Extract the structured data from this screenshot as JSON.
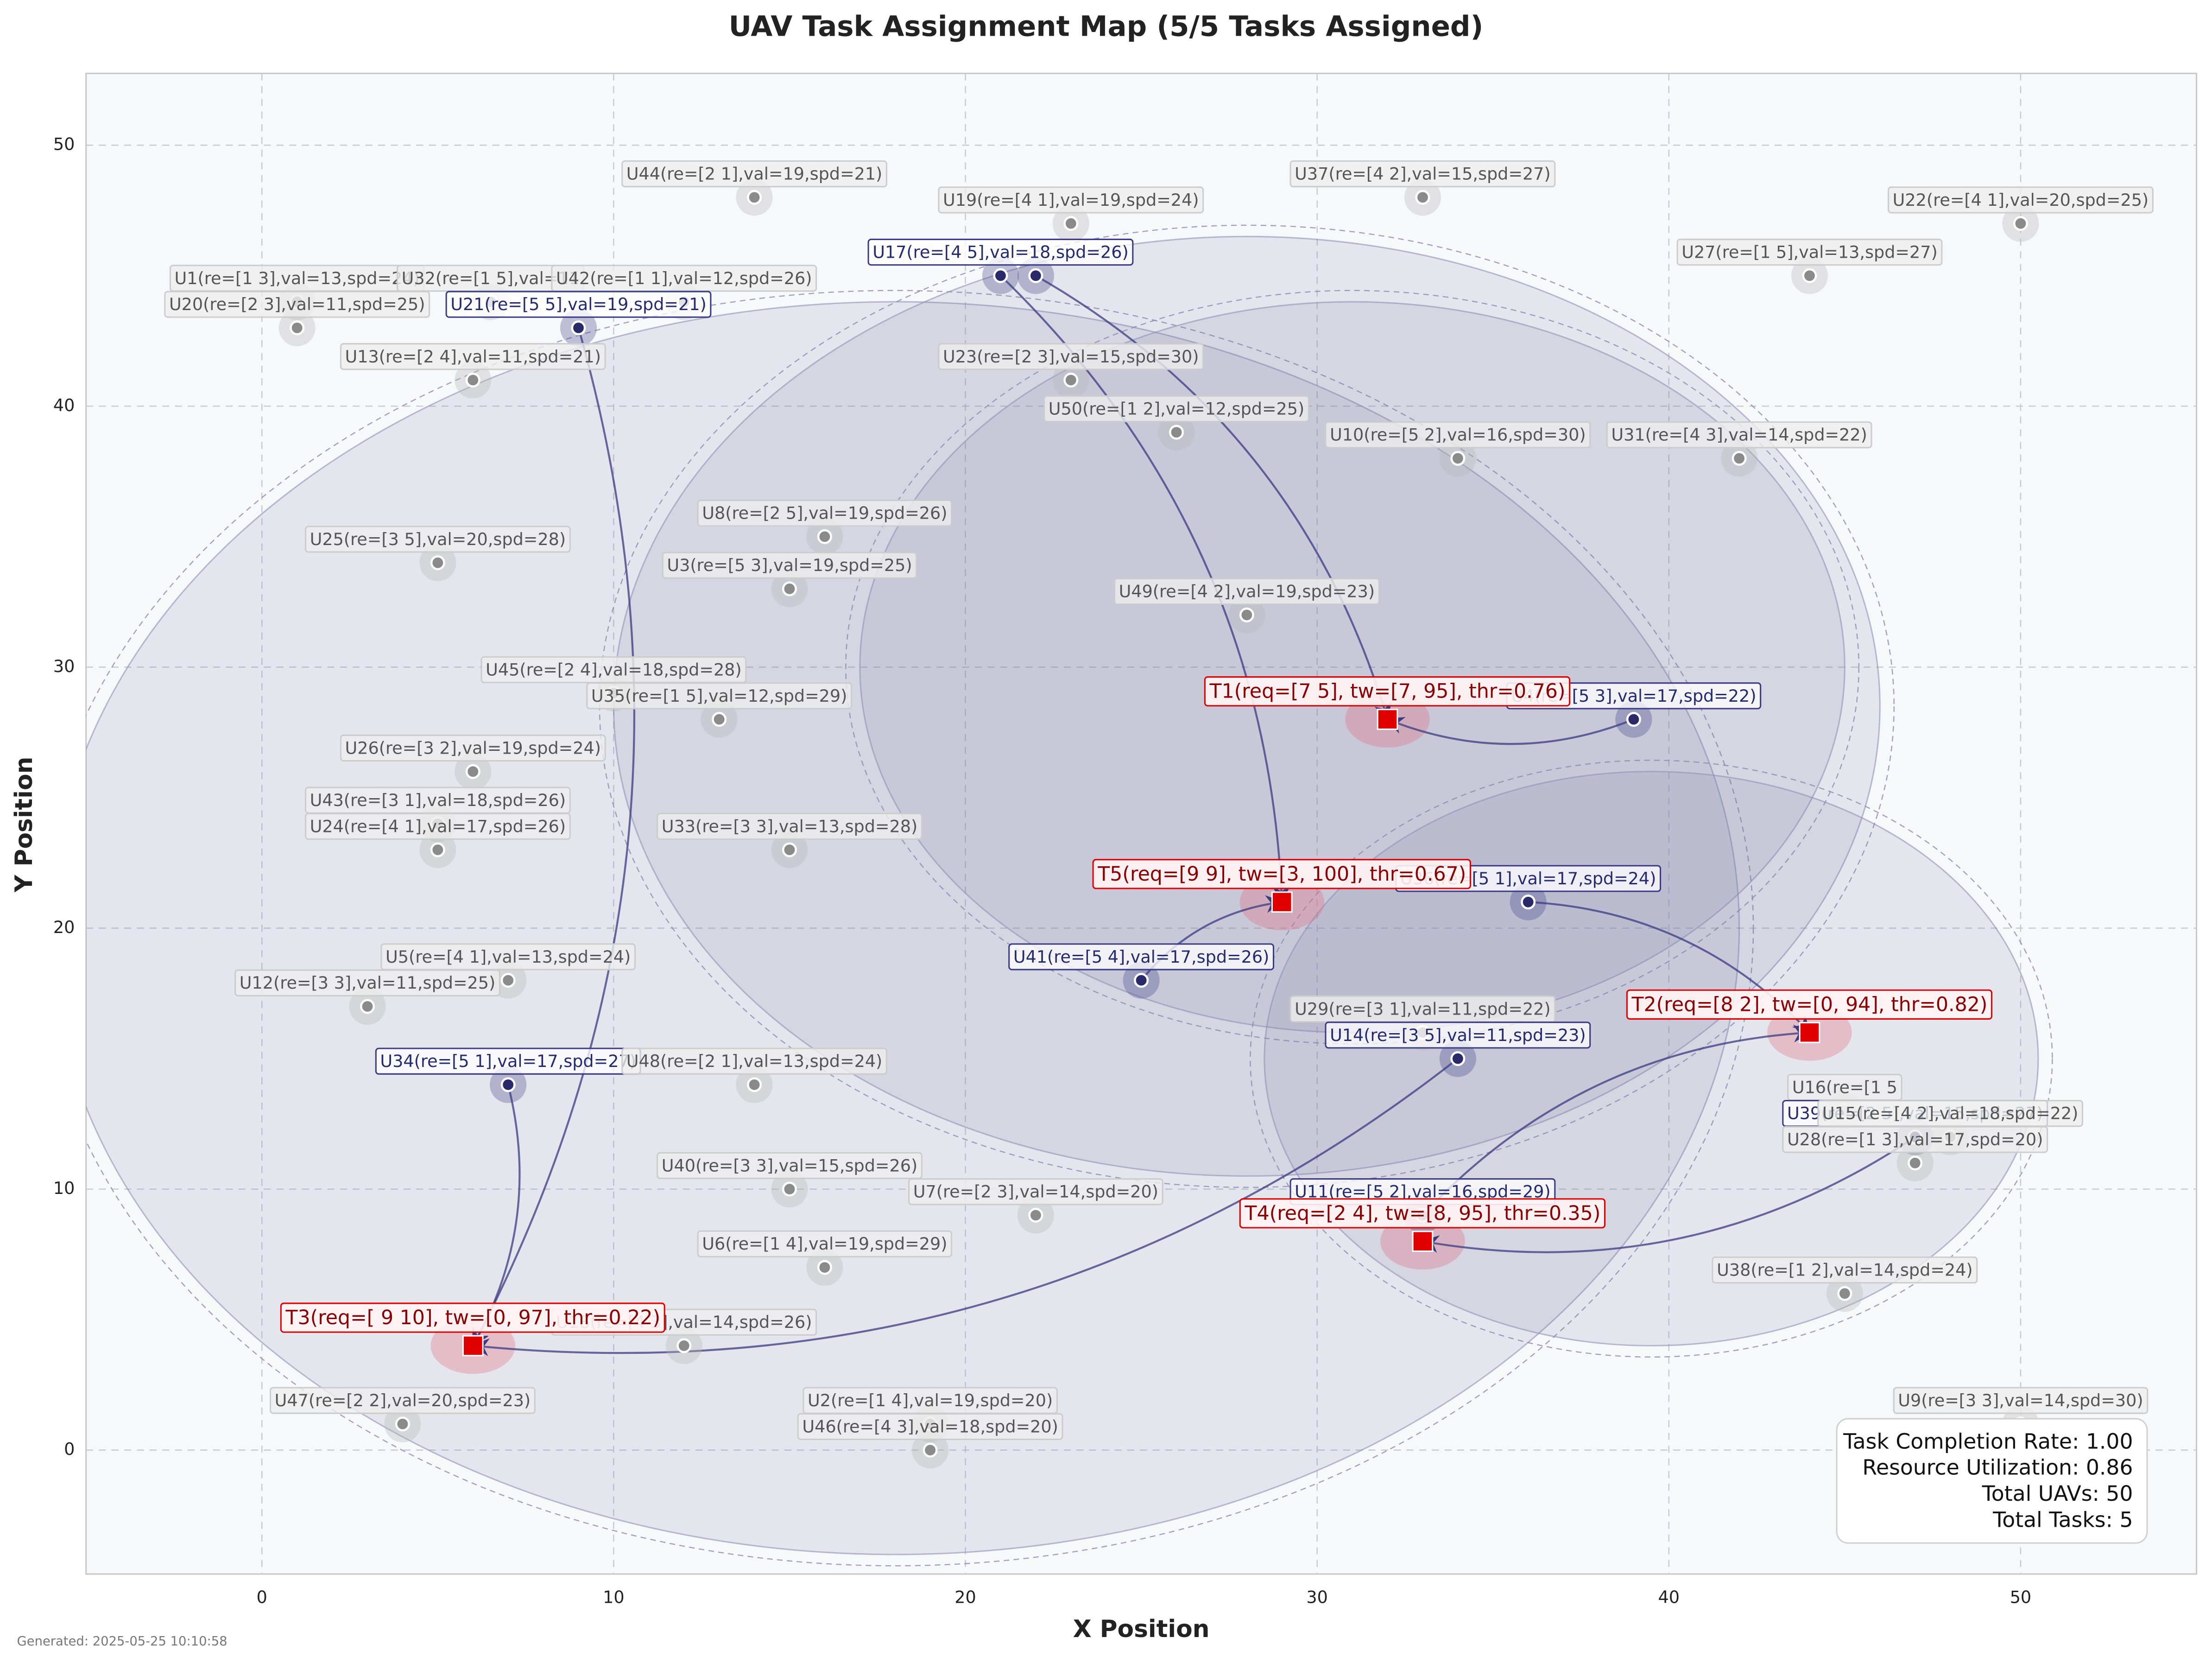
{
  "chart_data": {
    "type": "scatter",
    "title": "UAV Task Assignment Map (5/5 Tasks Assigned)",
    "x_label": "X Position",
    "y_label": "Y Position",
    "xlim": [
      -5,
      55
    ],
    "ylim": [
      -4.75,
      52.75
    ],
    "xticks": [
      0,
      10,
      20,
      30,
      40,
      50
    ],
    "yticks": [
      0,
      10,
      20,
      30,
      40,
      50
    ],
    "grid": true,
    "ranges": [
      {
        "x": 18,
        "y": 20,
        "r": 24
      },
      {
        "x": 28,
        "y": 28.5,
        "r": 18
      },
      {
        "x": 31,
        "y": 30,
        "r": 14
      },
      {
        "x": 39.5,
        "y": 15,
        "r": 11
      }
    ],
    "uavs": [
      {
        "label": "U1(re=[1 3],val=13,spd=24)",
        "x": 1,
        "y": 44,
        "assigned": false
      },
      {
        "label": "U20(re=[2 3],val=11,spd=25)",
        "x": 1,
        "y": 43,
        "assigned": false
      },
      {
        "label": "U32(re=[1 5],val=11",
        "x": 6.5,
        "y": 44,
        "assigned": false
      },
      {
        "label": "U42(re=[1 1],val=12,spd=26)",
        "x": 12,
        "y": 44,
        "assigned": false
      },
      {
        "label": "U21(re=[5 5],val=19,spd=21)",
        "x": 9,
        "y": 43,
        "assigned": true
      },
      {
        "label": "U13(re=[2 4],val=11,spd=21)",
        "x": 6,
        "y": 41,
        "assigned": false
      },
      {
        "label": "U44(re=[2 1],val=19,spd=21)",
        "x": 14,
        "y": 48,
        "assigned": false
      },
      {
        "label": "U19(re=[4 1],val=19,spd=24)",
        "x": 23,
        "y": 47,
        "assigned": false
      },
      {
        "label": "U37(re=[4 2],val=15,spd=27)",
        "x": 33,
        "y": 48,
        "assigned": false
      },
      {
        "label": "U22(re=[4 1],val=20,spd=25)",
        "x": 50,
        "y": 47,
        "assigned": false
      },
      {
        "label": "U27(re=[1 5],val=13,spd=27)",
        "x": 44,
        "y": 45,
        "assigned": false
      },
      {
        "label": null,
        "x": 22,
        "y": 45,
        "assigned": true
      },
      {
        "label": "U17(re=[4 5],val=18,spd=26)",
        "x": 21,
        "y": 45,
        "assigned": true
      },
      {
        "label": "U23(re=[2 3],val=15,spd=30)",
        "x": 23,
        "y": 41,
        "assigned": false
      },
      {
        "label": "U50(re=[1 2],val=12,spd=25)",
        "x": 26,
        "y": 39,
        "assigned": false
      },
      {
        "label": "U10(re=[5 2],val=16,spd=30)",
        "x": 34,
        "y": 38,
        "assigned": false
      },
      {
        "label": "U31(re=[4 3],val=14,spd=22)",
        "x": 42,
        "y": 38,
        "assigned": false
      },
      {
        "label": "U8(re=[2 5],val=19,spd=26)",
        "x": 16,
        "y": 35,
        "assigned": false
      },
      {
        "label": "U3(re=[5 3],val=19,spd=25)",
        "x": 15,
        "y": 33,
        "assigned": false
      },
      {
        "label": "U25(re=[3 5],val=20,spd=28)",
        "x": 5,
        "y": 34,
        "assigned": false
      },
      {
        "label": "U49(re=[4 2],val=19,spd=23)",
        "x": 28,
        "y": 32,
        "assigned": false
      },
      {
        "label": "U45(re=[2 4],val=18,spd=28)",
        "x": 10,
        "y": 29,
        "assigned": false
      },
      {
        "label": "U35(re=[1 5],val=12,spd=29)",
        "x": 13,
        "y": 28,
        "assigned": false
      },
      {
        "label": "U4(re=[5 3],val=17,spd=22)",
        "x": 39,
        "y": 28,
        "assigned": true
      },
      {
        "label": "U26(re=[3 2],val=19,spd=24)",
        "x": 6,
        "y": 26,
        "assigned": false
      },
      {
        "label": "U43(re=[3 1],val=18,spd=26)",
        "x": 5,
        "y": 24,
        "assigned": false
      },
      {
        "label": "U24(re=[4 1],val=17,spd=26)",
        "x": 5,
        "y": 23,
        "assigned": false
      },
      {
        "label": "U33(re=[3 3],val=13,spd=28)",
        "x": 15,
        "y": 23,
        "assigned": false
      },
      {
        "label": "U36(re=[5 1],val=17,spd=24)",
        "x": 36,
        "y": 21,
        "assigned": true
      },
      {
        "label": "U41(re=[5 4],val=17,spd=26)",
        "x": 25,
        "y": 18,
        "assigned": true
      },
      {
        "label": "U5(re=[4 1],val=13,spd=24)",
        "x": 7,
        "y": 18,
        "assigned": false
      },
      {
        "label": "U12(re=[3 3],val=11,spd=25)",
        "x": 3,
        "y": 17,
        "assigned": false
      },
      {
        "label": "U29(re=[3 1],val=11,spd=22)",
        "x": 33,
        "y": 16,
        "assigned": false
      },
      {
        "label": "U14(re=[3 5],val=11,spd=23)",
        "x": 34,
        "y": 15,
        "assigned": true
      },
      {
        "label": "U34(re=[5 1],val=17,spd=27)",
        "x": 7,
        "y": 14,
        "assigned": true
      },
      {
        "label": "U48(re=[2 1],val=13,spd=24)",
        "x": 14,
        "y": 14,
        "assigned": false
      },
      {
        "label": "U16(re=[1 5",
        "x": 45,
        "y": 13,
        "assigned": false
      },
      {
        "label": "U39(re=[2 5],val=15,spd=27)",
        "x": 47,
        "y": 12,
        "assigned": true
      },
      {
        "label": "U15(re=[4 2],val=18,spd=22)",
        "x": 48,
        "y": 12,
        "assigned": false
      },
      {
        "label": "U28(re=[1 3],val=17,spd=20)",
        "x": 47,
        "y": 11,
        "assigned": false
      },
      {
        "label": "U40(re=[3 3],val=15,spd=26)",
        "x": 15,
        "y": 10,
        "assigned": false
      },
      {
        "label": "U7(re=[2 3],val=14,spd=20)",
        "x": 22,
        "y": 9,
        "assigned": false
      },
      {
        "label": "U11(re=[5 2],val=16,spd=29)",
        "x": 33,
        "y": 9,
        "assigned": true
      },
      {
        "label": "U6(re=[1 4],val=19,spd=29)",
        "x": 16,
        "y": 7,
        "assigned": false
      },
      {
        "label": "U38(re=[1 2],val=14,spd=24)",
        "x": 45,
        "y": 6,
        "assigned": false
      },
      {
        "label": "U18(re=[4 3],val=14,spd=26)",
        "x": 12,
        "y": 4,
        "assigned": false
      },
      {
        "label": "U47(re=[2 2],val=20,spd=23)",
        "x": 4,
        "y": 1,
        "assigned": false
      },
      {
        "label": "U2(re=[1 4],val=19,spd=20)",
        "x": 19,
        "y": 1,
        "assigned": false
      },
      {
        "label": "U46(re=[4 3],val=18,spd=20)",
        "x": 19,
        "y": 0,
        "assigned": false
      },
      {
        "label": "U9(re=[3 3],val=14,spd=30)",
        "x": 50,
        "y": 1,
        "assigned": false
      }
    ],
    "tasks": [
      {
        "label": "T1(req=[7 5], tw=[7, 95], thr=0.76)",
        "x": 32,
        "y": 28
      },
      {
        "label": "T5(req=[9 9], tw=[3, 100], thr=0.67)",
        "x": 29,
        "y": 21
      },
      {
        "label": "T2(req=[8 2], tw=[0, 94], thr=0.82)",
        "x": 44,
        "y": 16
      },
      {
        "label": "T4(req=[2 4], tw=[8, 95], thr=0.35)",
        "x": 33,
        "y": 8
      },
      {
        "label": "T3(req=[ 9 10], tw=[0, 97], thr=0.22)",
        "x": 6,
        "y": 4
      }
    ],
    "arrows": [
      {
        "x": [
          9,
          6
        ],
        "y": [
          43,
          4
        ]
      },
      {
        "x": [
          7,
          6
        ],
        "y": [
          14,
          4
        ]
      },
      {
        "x": [
          34,
          6
        ],
        "y": [
          15,
          4
        ]
      },
      {
        "x": [
          22,
          32
        ],
        "y": [
          45,
          28
        ]
      },
      {
        "x": [
          39,
          32
        ],
        "y": [
          28,
          28
        ]
      },
      {
        "x": [
          21,
          29
        ],
        "y": [
          45,
          21
        ]
      },
      {
        "x": [
          25,
          29
        ],
        "y": [
          18,
          21
        ]
      },
      {
        "x": [
          36,
          44
        ],
        "y": [
          21,
          16
        ]
      },
      {
        "x": [
          33,
          44
        ],
        "y": [
          9,
          16
        ]
      },
      {
        "x": [
          47,
          33
        ],
        "y": [
          12,
          8
        ]
      }
    ],
    "stats": [
      "Task Completion Rate: 1.00",
      "Resource Utilization: 0.86",
      "Total UAVs: 50",
      "Total Tasks: 5"
    ],
    "footer": "Generated: 2025-05-25 10:10:58"
  }
}
